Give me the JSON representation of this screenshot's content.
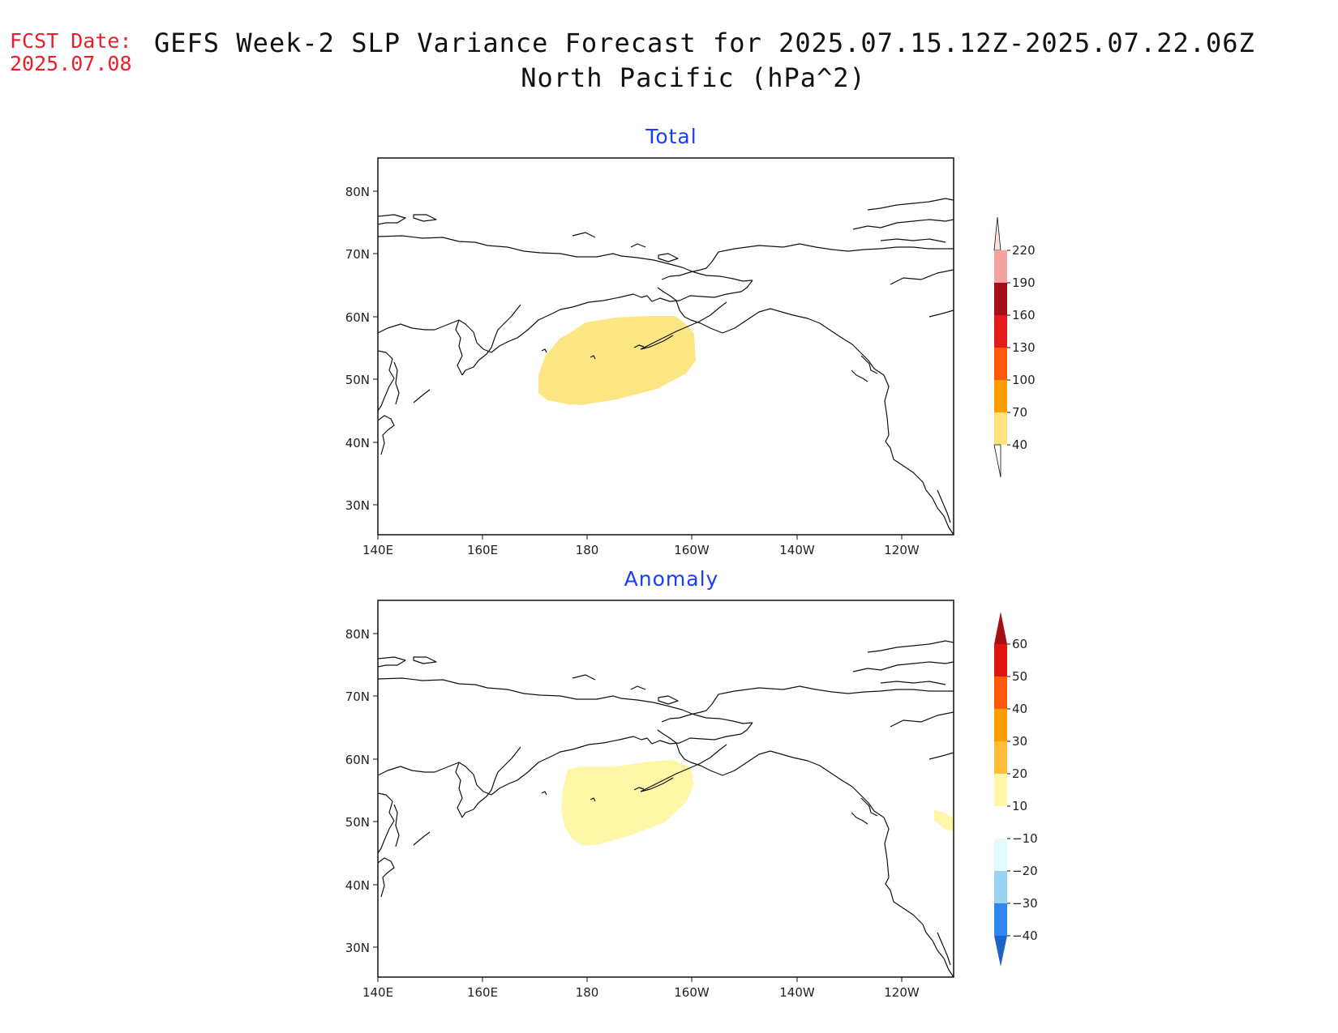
{
  "header": {
    "fcst_label": "FCST Date:",
    "fcst_date": "2025.07.08",
    "title_line1": "GEFS Week-2 SLP Variance Forecast for 2025.07.15.12Z-2025.07.22.06Z",
    "title_line2": "North Pacific (hPa^2)"
  },
  "axes": {
    "lat_labels": [
      "80N",
      "70N",
      "60N",
      "50N",
      "40N",
      "30N"
    ],
    "lon_labels": [
      "140E",
      "160E",
      "180",
      "160W",
      "140W",
      "120W"
    ]
  },
  "panels": [
    {
      "title": "Total",
      "colorbar": {
        "labels": [
          "220",
          "190",
          "160",
          "130",
          "100",
          "70",
          "40"
        ],
        "colors": [
          "#f4a3a3",
          "#a50f15",
          "#e31a1c",
          "#fc5a0a",
          "#ff9c00",
          "#ffe27a"
        ],
        "top_color": "#fde0e0",
        "bottom_extension": "white"
      },
      "shaded_region": {
        "level": "40-70",
        "color": "#fce583",
        "approx_center": "52N 175W"
      }
    },
    {
      "title": "Anomaly",
      "colorbar": {
        "labels": [
          "60",
          "50",
          "40",
          "30",
          "20",
          "10",
          "−10",
          "−20",
          "−30",
          "−40"
        ],
        "colors": [
          "#e0160e",
          "#fc5a0a",
          "#ff9c00",
          "#ffbd38",
          "#fff6a8",
          "#ffffff",
          "#e3fbff",
          "#9ad2f6",
          "#2e86ee"
        ],
        "top_color": "#a50f15",
        "bottom_color": "#1e63c8"
      },
      "shaded_region": {
        "level": "10-20",
        "color": "#fef7a7",
        "approx_center": "52N 177W"
      }
    }
  ]
}
